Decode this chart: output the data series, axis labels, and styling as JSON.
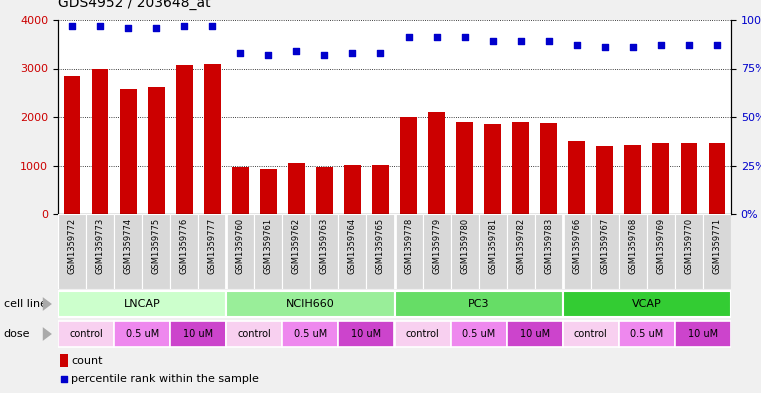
{
  "title": "GDS4952 / 203648_at",
  "samples": [
    "GSM1359772",
    "GSM1359773",
    "GSM1359774",
    "GSM1359775",
    "GSM1359776",
    "GSM1359777",
    "GSM1359760",
    "GSM1359761",
    "GSM1359762",
    "GSM1359763",
    "GSM1359764",
    "GSM1359765",
    "GSM1359778",
    "GSM1359779",
    "GSM1359780",
    "GSM1359781",
    "GSM1359782",
    "GSM1359783",
    "GSM1359766",
    "GSM1359767",
    "GSM1359768",
    "GSM1359769",
    "GSM1359770",
    "GSM1359771"
  ],
  "counts": [
    2850,
    2980,
    2580,
    2620,
    3080,
    3100,
    970,
    920,
    1060,
    960,
    1010,
    1010,
    2000,
    2100,
    1900,
    1860,
    1890,
    1880,
    1500,
    1400,
    1420,
    1470,
    1460,
    1460
  ],
  "percentiles": [
    97,
    97,
    96,
    96,
    97,
    97,
    83,
    82,
    84,
    82,
    83,
    83,
    91,
    91,
    91,
    89,
    89,
    89,
    87,
    86,
    86,
    87,
    87,
    87
  ],
  "bar_color": "#cc0000",
  "dot_color": "#0000cc",
  "cell_lines": [
    {
      "label": "LNCAP",
      "start": 0,
      "end": 6,
      "color": "#ccffcc"
    },
    {
      "label": "NCIH660",
      "start": 6,
      "end": 12,
      "color": "#99ee99"
    },
    {
      "label": "PC3",
      "start": 12,
      "end": 18,
      "color": "#66dd66"
    },
    {
      "label": "VCAP",
      "start": 18,
      "end": 24,
      "color": "#33cc33"
    }
  ],
  "doses": [
    {
      "label": "control",
      "start": 0,
      "end": 2,
      "color": "#f8d0f0"
    },
    {
      "label": "0.5 uM",
      "start": 2,
      "end": 4,
      "color": "#ee88ee"
    },
    {
      "label": "10 uM",
      "start": 4,
      "end": 6,
      "color": "#cc44cc"
    },
    {
      "label": "control",
      "start": 6,
      "end": 8,
      "color": "#f8d0f0"
    },
    {
      "label": "0.5 uM",
      "start": 8,
      "end": 10,
      "color": "#ee88ee"
    },
    {
      "label": "10 uM",
      "start": 10,
      "end": 12,
      "color": "#cc44cc"
    },
    {
      "label": "control",
      "start": 12,
      "end": 14,
      "color": "#f8d0f0"
    },
    {
      "label": "0.5 uM",
      "start": 14,
      "end": 16,
      "color": "#ee88ee"
    },
    {
      "label": "10 uM",
      "start": 16,
      "end": 18,
      "color": "#cc44cc"
    },
    {
      "label": "control",
      "start": 18,
      "end": 20,
      "color": "#f8d0f0"
    },
    {
      "label": "0.5 uM",
      "start": 20,
      "end": 22,
      "color": "#ee88ee"
    },
    {
      "label": "10 uM",
      "start": 22,
      "end": 24,
      "color": "#cc44cc"
    }
  ],
  "ylim_left": [
    0,
    4000
  ],
  "ylim_right": [
    0,
    100
  ],
  "yticks_left": [
    0,
    1000,
    2000,
    3000,
    4000
  ],
  "yticks_right": [
    0,
    25,
    50,
    75,
    100
  ],
  "yticklabels_right": [
    "0%",
    "25%",
    "50%",
    "75%",
    "100%"
  ],
  "grid_values": [
    1000,
    2000,
    3000,
    4000
  ],
  "legend_count_color": "#cc0000",
  "legend_dot_color": "#0000cc",
  "xtick_bg": "#dddddd",
  "fig_bg": "#f0f0f0"
}
